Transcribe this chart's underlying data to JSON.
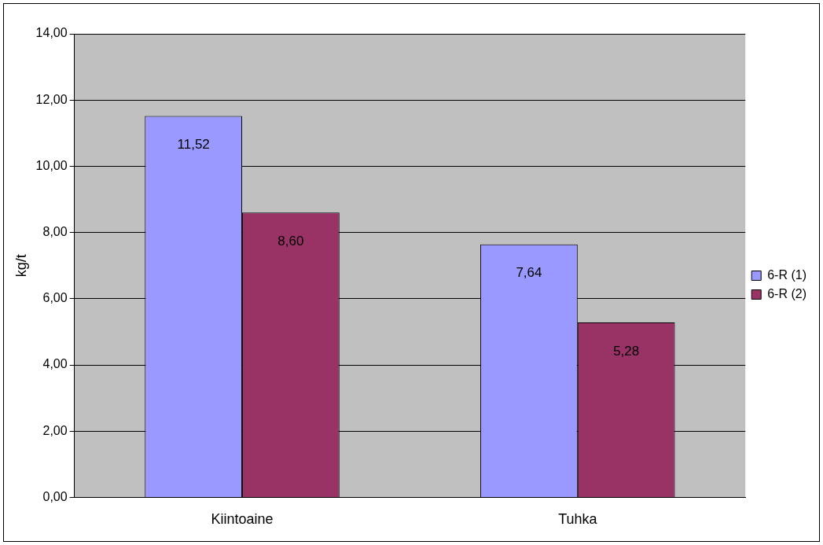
{
  "chart_data": {
    "type": "bar",
    "ylabel": "kg/t",
    "categories": [
      "Kiintoaine",
      "Tuhka"
    ],
    "series": [
      {
        "name": "6-R (1)",
        "color": "#9999ff",
        "values": [
          11.52,
          7.64
        ],
        "value_labels": [
          "11,52",
          "7,64"
        ]
      },
      {
        "name": "6-R (2)",
        "color": "#993366",
        "values": [
          8.6,
          5.28
        ],
        "value_labels": [
          "8,60",
          "5,28"
        ]
      }
    ],
    "ylim": [
      0,
      14
    ],
    "yticks": [
      {
        "value": 0,
        "label": "0,00"
      },
      {
        "value": 2,
        "label": "2,00"
      },
      {
        "value": 4,
        "label": "4,00"
      },
      {
        "value": 6,
        "label": "6,00"
      },
      {
        "value": 8,
        "label": "8,00"
      },
      {
        "value": 10,
        "label": "10,00"
      },
      {
        "value": 12,
        "label": "12,00"
      },
      {
        "value": 14,
        "label": "14,00"
      }
    ],
    "grid": "y",
    "legend": "right"
  }
}
